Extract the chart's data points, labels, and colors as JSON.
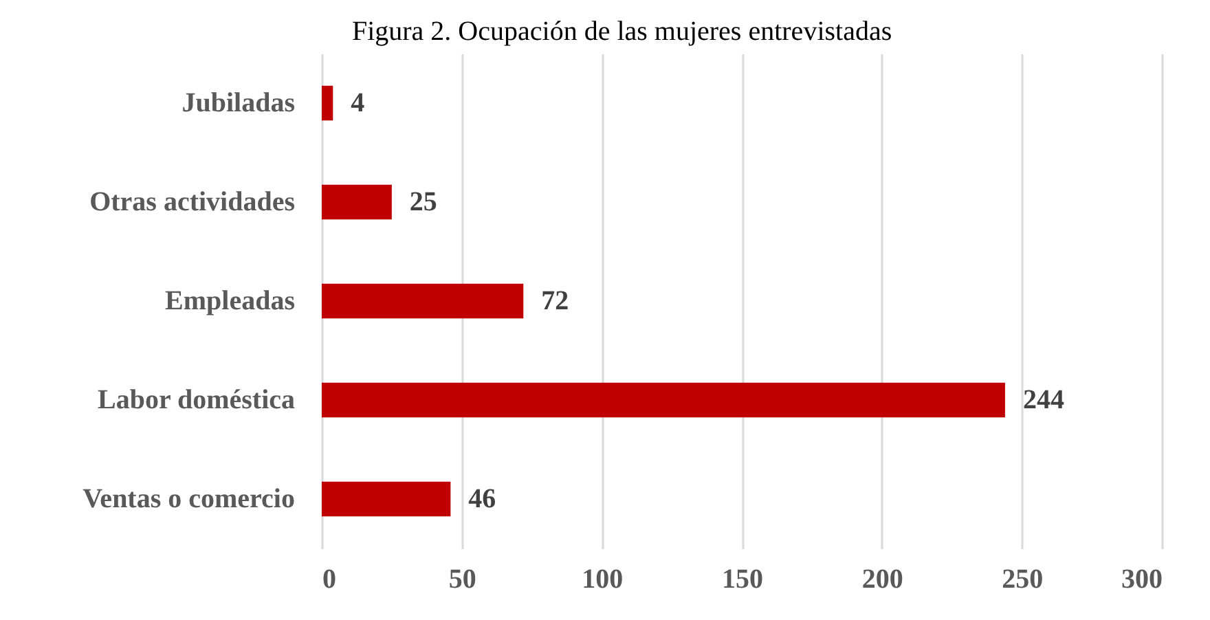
{
  "chart_data": {
    "type": "bar",
    "orientation": "horizontal",
    "title": "Figura 2. Ocupación de las mujeres entrevistadas",
    "categories": [
      "Jubiladas",
      "Otras actividades",
      "Empleadas",
      "Labor doméstica",
      "Ventas o comercio"
    ],
    "values": [
      4,
      25,
      72,
      244,
      46
    ],
    "color": "#c00000",
    "xlim": [
      0,
      300
    ],
    "xticks": [
      0,
      50,
      100,
      150,
      200,
      250,
      300
    ],
    "grid": "x",
    "data_labels": true
  }
}
